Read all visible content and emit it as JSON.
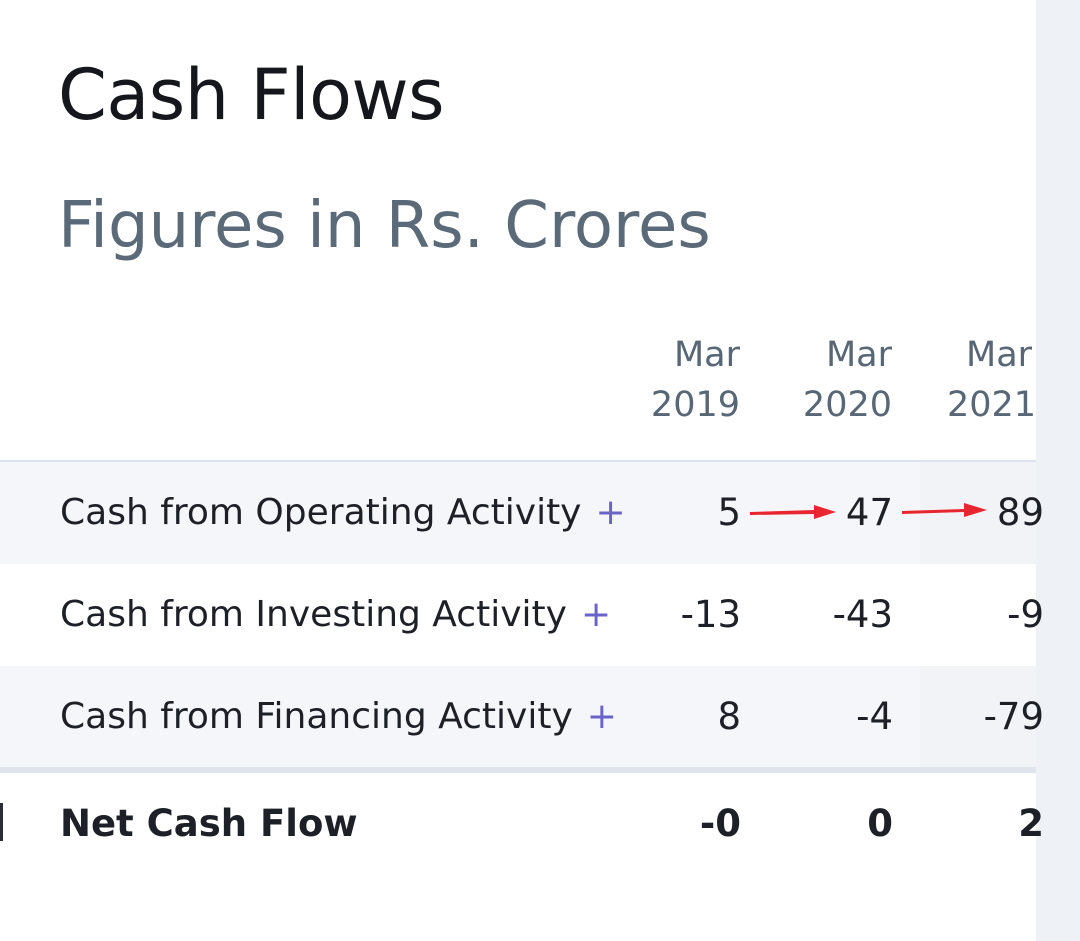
{
  "header": {
    "title": "Cash Flows",
    "subtitle": "Figures in Rs. Crores"
  },
  "columns": [
    {
      "month": "Mar",
      "year": "2019"
    },
    {
      "month": "Mar",
      "year": "2020"
    },
    {
      "month": "Mar",
      "year": "2021"
    }
  ],
  "rows": [
    {
      "label": "Cash from Operating Activity",
      "expand": "+",
      "values": [
        "5",
        "47",
        "89"
      ]
    },
    {
      "label": "Cash from Investing Activity",
      "expand": "+",
      "values": [
        "-13",
        "-43",
        "-9"
      ]
    },
    {
      "label": "Cash from Financing Activity",
      "expand": "+",
      "values": [
        "8",
        "-4",
        "-79"
      ]
    }
  ],
  "net": {
    "label": "Net Cash Flow",
    "values": [
      "-0",
      "0",
      "2"
    ]
  },
  "colors": {
    "arrow": "#e8262f",
    "accent": "#6a64c8"
  }
}
